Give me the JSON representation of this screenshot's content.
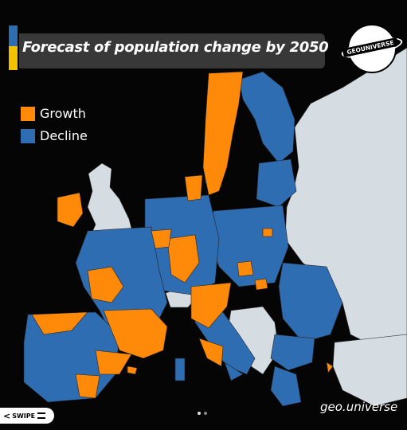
{
  "map": {
    "title": "Forecast of population change by 2050",
    "legend": [
      {
        "label": "Growth",
        "color": "#ff8a0a"
      },
      {
        "label": "Decline",
        "color": "#2f6db3"
      }
    ],
    "colors": {
      "growth": "#ff8a0a",
      "decline": "#2f6db3",
      "outside": "#d6dde2",
      "sea": "#050505"
    }
  },
  "logo": {
    "text": "GEOUNIVERSE"
  },
  "swipe": {
    "label": "SWIPE"
  },
  "watermark": {
    "text": "geo.universe"
  },
  "carousel": {
    "current": 1,
    "total": 2
  }
}
